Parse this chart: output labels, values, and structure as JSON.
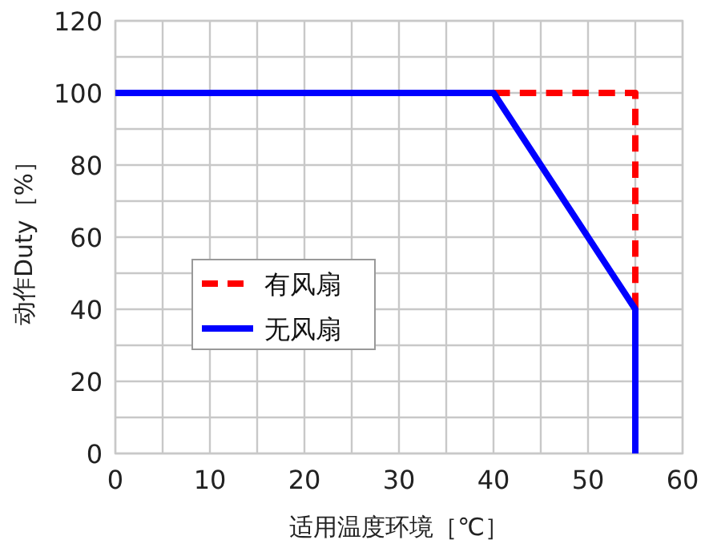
{
  "chart_data": {
    "type": "line",
    "xlabel": "适用温度环境［℃］",
    "ylabel": "动作Duty［%］",
    "xlim": [
      0,
      60
    ],
    "ylim": [
      0,
      120
    ],
    "xticks": [
      0,
      {
        "value": 5,
        "label": null
      },
      10,
      {
        "value": 15,
        "label": null
      },
      20,
      {
        "value": 25,
        "label": null
      },
      30,
      {
        "value": 35,
        "label": null
      },
      40,
      {
        "value": 45,
        "label": null
      },
      50,
      {
        "value": 55,
        "label": null
      },
      60
    ],
    "yticks": [
      0,
      {
        "value": 10,
        "label": null
      },
      20,
      {
        "value": 30,
        "label": null
      },
      40,
      {
        "value": 50,
        "label": null
      },
      60,
      {
        "value": 70,
        "label": null
      },
      80,
      {
        "value": 90,
        "label": null
      },
      100,
      {
        "value": 110,
        "label": null
      },
      120
    ],
    "grid": true,
    "legend": "left",
    "series": [
      {
        "name": "有风扇",
        "color": "#ff0000",
        "line_style": "dashed",
        "x": [
          40,
          55,
          55
        ],
        "values": [
          100,
          100,
          40
        ]
      },
      {
        "name": "无风扇",
        "color": "#0000ff",
        "line_style": "solid",
        "x": [
          0,
          40,
          55,
          55
        ],
        "values": [
          100,
          100,
          40,
          0
        ]
      }
    ]
  }
}
